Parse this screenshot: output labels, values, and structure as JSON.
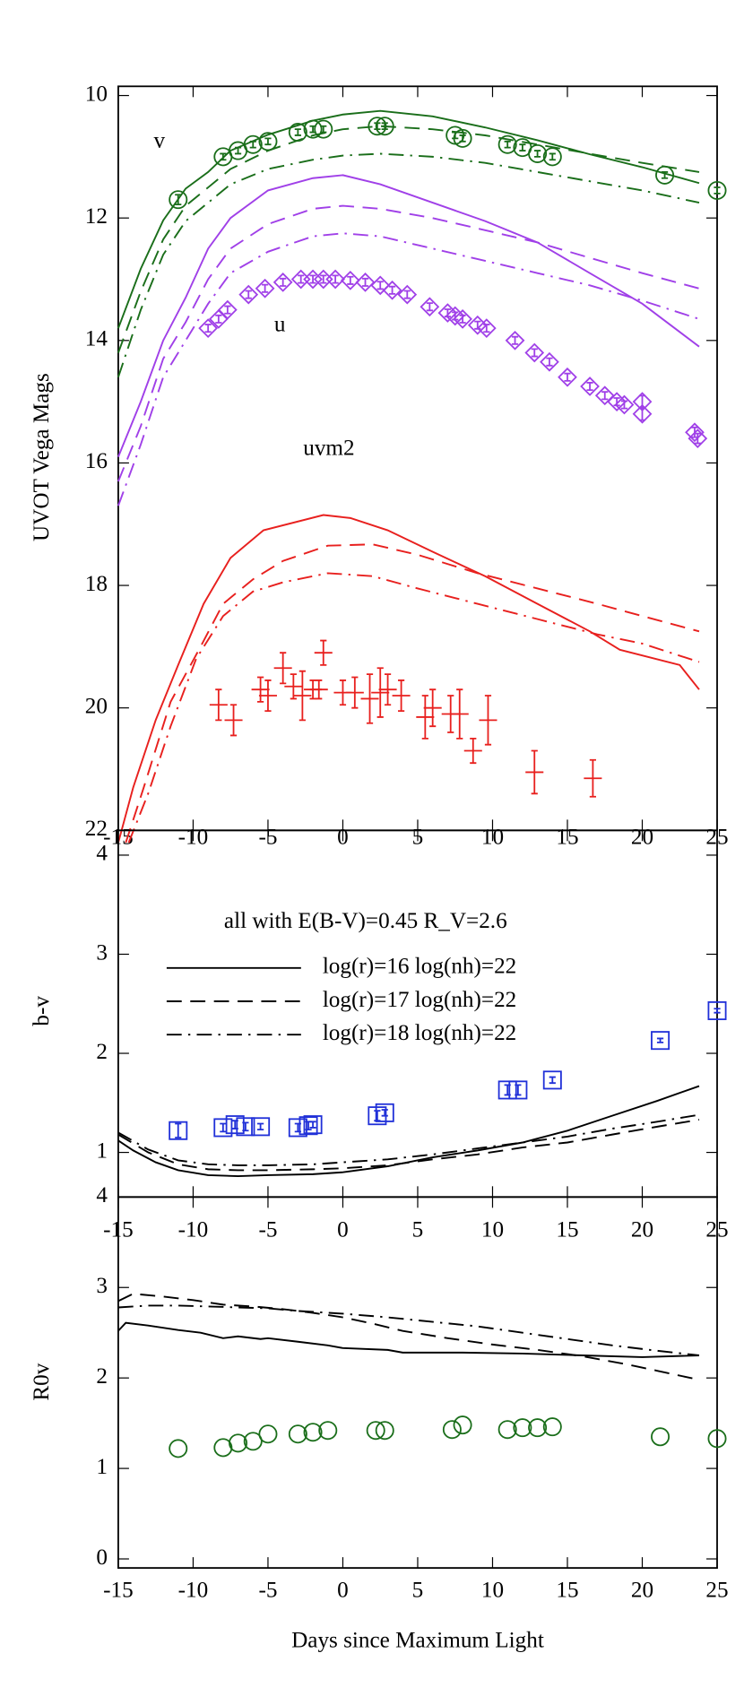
{
  "chart_data": [
    {
      "type": "line",
      "ylabel": "UVOT Vega Mags",
      "xlim": [
        -15,
        25
      ],
      "xticks": [
        -15,
        -10,
        -5,
        0,
        5,
        10,
        15,
        20,
        25
      ],
      "ylim": [
        9.85,
        22
      ],
      "y_inverted": true,
      "yticks": [
        10,
        12,
        14,
        16,
        18,
        20,
        22
      ],
      "annotations": [
        "v",
        "u",
        "uvm2"
      ],
      "series": [
        {
          "color": "#1a6e1a",
          "style": "solid",
          "x": [
            -15,
            -13.5,
            -12,
            -10.5,
            -9,
            -7.5,
            -5,
            -2,
            0,
            2.5,
            6,
            9.5,
            13,
            16.5,
            20,
            23.8
          ],
          "values": [
            13.8,
            12.83,
            12.04,
            11.52,
            11.25,
            10.9,
            10.64,
            10.41,
            10.31,
            10.25,
            10.34,
            10.52,
            10.73,
            10.96,
            11.17,
            11.43
          ]
        },
        {
          "color": "#1a6e1a",
          "style": "dashed",
          "x": [
            -15,
            -13.5,
            -12,
            -10.5,
            -9,
            -7.5,
            -5,
            -2,
            0,
            2.5,
            6,
            9.5,
            13,
            16.5,
            20,
            23.8
          ],
          "values": [
            14.2,
            13.2,
            12.35,
            11.8,
            11.5,
            11.2,
            10.9,
            10.65,
            10.55,
            10.5,
            10.55,
            10.65,
            10.8,
            10.95,
            11.1,
            11.25
          ]
        },
        {
          "color": "#1a6e1a",
          "style": "dashdot",
          "x": [
            -15,
            -13.5,
            -12,
            -10.5,
            -9,
            -7.5,
            -5,
            -2,
            0,
            2.5,
            6,
            9.5,
            13,
            16.5,
            20,
            23.8
          ],
          "values": [
            14.6,
            13.5,
            12.6,
            12.05,
            11.75,
            11.45,
            11.2,
            11.05,
            10.98,
            10.95,
            11.0,
            11.1,
            11.25,
            11.4,
            11.55,
            11.75
          ]
        },
        {
          "color": "#1a6e1a",
          "marker": "circle",
          "x": [
            -11,
            -8,
            -7,
            -6,
            -5,
            -3,
            -2,
            -1.3,
            2.3,
            2.8,
            7.5,
            8,
            11,
            12,
            13,
            14,
            21.5,
            25
          ],
          "values": [
            11.7,
            11.0,
            10.9,
            10.8,
            10.75,
            10.6,
            10.55,
            10.55,
            10.5,
            10.5,
            10.65,
            10.7,
            10.8,
            10.85,
            10.95,
            11.0,
            11.3,
            11.55
          ],
          "errors": [
            0.08,
            0.05,
            0.05,
            0.05,
            0.05,
            0.05,
            0.05,
            0.05,
            0.05,
            0.05,
            0.05,
            0.05,
            0.05,
            0.05,
            0.05,
            0.05,
            0.05,
            0.05
          ]
        },
        {
          "color": "#a040e8",
          "style": "solid",
          "x": [
            -15,
            -13.5,
            -12,
            -10.5,
            -9,
            -7.5,
            -5,
            -2,
            0,
            2.5,
            6,
            9.5,
            13,
            16.5,
            20,
            23.8
          ],
          "values": [
            15.9,
            15.0,
            14.0,
            13.3,
            12.5,
            12.0,
            11.55,
            11.35,
            11.3,
            11.45,
            11.75,
            12.05,
            12.4,
            12.9,
            13.4,
            14.1
          ]
        },
        {
          "color": "#a040e8",
          "style": "dashed",
          "x": [
            -15,
            -13.5,
            -12,
            -10.5,
            -9,
            -7.5,
            -5,
            -2,
            0,
            2.5,
            6,
            9.5,
            13,
            16.5,
            20,
            23.8
          ],
          "values": [
            16.3,
            15.4,
            14.3,
            13.7,
            13.0,
            12.5,
            12.1,
            11.85,
            11.8,
            11.85,
            12.0,
            12.2,
            12.4,
            12.65,
            12.9,
            13.15
          ]
        },
        {
          "color": "#a040e8",
          "style": "dashdot",
          "x": [
            -15,
            -13.5,
            -12,
            -10.5,
            -9,
            -7.5,
            -5,
            -2,
            0,
            2.5,
            6,
            9.5,
            13,
            16.5,
            20,
            23.8
          ],
          "values": [
            16.7,
            15.7,
            14.6,
            14.0,
            13.4,
            12.9,
            12.55,
            12.3,
            12.25,
            12.3,
            12.5,
            12.7,
            12.9,
            13.1,
            13.35,
            13.65
          ]
        },
        {
          "color": "#a040e8",
          "marker": "diamond",
          "x": [
            -9,
            -8.3,
            -7.7,
            -6.3,
            -5.2,
            -4,
            -2.8,
            -2,
            -1.3,
            -0.5,
            0.5,
            1.5,
            2.5,
            3.3,
            4.3,
            5.8,
            7,
            7.5,
            8,
            9,
            9.6,
            11.5,
            12.8,
            13.8,
            15,
            16.5,
            17.5,
            18.3,
            18.8,
            20,
            20,
            23.5,
            23.7
          ],
          "values": [
            13.8,
            13.65,
            13.5,
            13.25,
            13.15,
            13.05,
            13.0,
            13.0,
            13.0,
            13.0,
            13.02,
            13.05,
            13.1,
            13.18,
            13.25,
            13.45,
            13.55,
            13.6,
            13.65,
            13.75,
            13.8,
            14.0,
            14.2,
            14.35,
            14.6,
            14.75,
            14.9,
            15.0,
            15.05,
            15.0,
            15.2,
            15.5,
            15.6
          ],
          "errors": [
            0.06,
            0.06,
            0.06,
            0.06,
            0.06,
            0.06,
            0.06,
            0.06,
            0.06,
            0.06,
            0.06,
            0.06,
            0.06,
            0.06,
            0.06,
            0.06,
            0.06,
            0.06,
            0.06,
            0.06,
            0.06,
            0.06,
            0.06,
            0.06,
            0.06,
            0.06,
            0.06,
            0.06,
            0.06,
            0.1,
            0.1,
            0.08,
            0.08
          ]
        },
        {
          "color": "#e8201e",
          "style": "solid",
          "x": [
            -15,
            -14,
            -12.5,
            -11,
            -9.3,
            -7.5,
            -5.3,
            -1.3,
            0.5,
            3,
            6,
            9.5,
            13,
            16.5,
            18.5,
            22.5,
            23.8
          ],
          "values": [
            22.2,
            21.3,
            20.2,
            19.3,
            18.3,
            17.55,
            17.1,
            16.85,
            16.9,
            17.1,
            17.45,
            17.85,
            18.3,
            18.75,
            19.05,
            19.3,
            19.7
          ]
        },
        {
          "color": "#e8201e",
          "style": "dashed",
          "x": [
            -14.5,
            -13.3,
            -11.5,
            -9.5,
            -8,
            -6,
            -4,
            -1,
            2,
            5,
            9,
            13,
            17,
            20,
            23.8
          ],
          "values": [
            22.2,
            21.3,
            19.9,
            19.0,
            18.3,
            17.9,
            17.6,
            17.35,
            17.33,
            17.5,
            17.8,
            18.05,
            18.3,
            18.5,
            18.75
          ]
        },
        {
          "color": "#e8201e",
          "style": "dashdot",
          "x": [
            -14.3,
            -13,
            -11.5,
            -9.8,
            -8,
            -6,
            -4,
            -1,
            2,
            5,
            9,
            13,
            17,
            20,
            23.8
          ],
          "values": [
            22.2,
            21.4,
            20.3,
            19.2,
            18.5,
            18.1,
            17.95,
            17.8,
            17.85,
            18.05,
            18.3,
            18.55,
            18.8,
            18.95,
            19.25
          ]
        },
        {
          "color": "#e8201e",
          "marker": "cross",
          "xerror": 0.6,
          "x": [
            -8.3,
            -7.3,
            -5.5,
            -5,
            -4,
            -3.3,
            -2.7,
            -2,
            -1.6,
            -1.3,
            0,
            0.8,
            1.8,
            2.5,
            3,
            3.9,
            5.5,
            6,
            7.2,
            7.8,
            8.7,
            9.7,
            12.8,
            16.7
          ],
          "values": [
            19.95,
            20.2,
            19.7,
            19.8,
            19.35,
            19.65,
            19.8,
            19.7,
            19.7,
            19.1,
            19.75,
            19.75,
            19.85,
            19.75,
            19.7,
            19.8,
            20.15,
            20.0,
            20.1,
            20.1,
            20.7,
            20.2,
            21.05,
            21.15
          ],
          "errors": [
            0.25,
            0.25,
            0.2,
            0.25,
            0.25,
            0.2,
            0.4,
            0.15,
            0.15,
            0.2,
            0.2,
            0.25,
            0.4,
            0.4,
            0.25,
            0.25,
            0.35,
            0.3,
            0.3,
            0.4,
            0.2,
            0.4,
            0.35,
            0.3
          ]
        }
      ]
    },
    {
      "type": "line",
      "ylabel": "b-v",
      "xlim": [
        -15,
        25
      ],
      "xticks": [
        -15,
        -10,
        -5,
        0,
        5,
        10,
        15,
        20,
        25
      ],
      "ylim": [
        0.55,
        4.25
      ],
      "yticks": [
        1,
        2,
        3,
        4
      ],
      "annotations": [
        "all with E(B-V)=0.45 R_V=2.6"
      ],
      "series": [
        {
          "name": "log(r)=16 log(nh)=22",
          "color": "#000000",
          "style": "solid",
          "x": [
            -15,
            -14,
            -12.5,
            -11,
            -9,
            -7,
            -5,
            -2,
            0,
            3,
            6,
            9,
            12,
            15,
            18,
            21,
            23.8
          ],
          "values": [
            1.12,
            1.02,
            0.9,
            0.82,
            0.77,
            0.76,
            0.77,
            0.78,
            0.8,
            0.86,
            0.95,
            1.02,
            1.1,
            1.22,
            1.37,
            1.52,
            1.67
          ]
        },
        {
          "name": "log(r)=17 log(nh)=22",
          "color": "#000000",
          "style": "dashed",
          "x": [
            -15,
            -13,
            -11,
            -9,
            -7,
            -5,
            -2,
            0,
            3,
            6,
            9,
            12,
            15,
            18,
            21,
            23.8
          ],
          "values": [
            1.18,
            1.0,
            0.88,
            0.83,
            0.82,
            0.82,
            0.83,
            0.84,
            0.87,
            0.93,
            0.98,
            1.05,
            1.1,
            1.18,
            1.26,
            1.33
          ]
        },
        {
          "name": "log(r)=18 log(nh)=22",
          "color": "#000000",
          "style": "dashdot",
          "x": [
            -15,
            -13,
            -11,
            -9,
            -7,
            -5,
            -2,
            0,
            3,
            6,
            9,
            12,
            15,
            18,
            21,
            23.8
          ],
          "values": [
            1.2,
            1.03,
            0.92,
            0.88,
            0.87,
            0.87,
            0.88,
            0.9,
            0.93,
            0.98,
            1.04,
            1.1,
            1.16,
            1.24,
            1.31,
            1.38
          ]
        },
        {
          "color": "#2030d8",
          "marker": "square",
          "x": [
            -11,
            -8,
            -7.2,
            -6.5,
            -5.5,
            -3,
            -2.3,
            -2,
            2.3,
            2.8,
            11,
            11.7,
            14,
            21.2,
            25
          ],
          "values": [
            1.22,
            1.25,
            1.28,
            1.26,
            1.26,
            1.25,
            1.27,
            1.28,
            1.37,
            1.4,
            1.63,
            1.63,
            1.73,
            2.13,
            2.43
          ],
          "errors": [
            0.07,
            0.04,
            0.04,
            0.04,
            0.03,
            0.04,
            0.04,
            0.03,
            0.05,
            0.03,
            0.05,
            0.05,
            0.03,
            0.02,
            0.02
          ]
        }
      ]
    },
    {
      "type": "line",
      "ylabel": "R0v",
      "xlabel": "Days since Maximum Light",
      "xlim": [
        -15,
        25
      ],
      "xticks": [
        -15,
        -10,
        -5,
        0,
        5,
        10,
        15,
        20,
        25
      ],
      "ylim": [
        -0.1,
        4.0
      ],
      "yticks": [
        0,
        1,
        2,
        3,
        4
      ],
      "series": [
        {
          "color": "#000000",
          "style": "solid",
          "x": [
            -15,
            -14.5,
            -13,
            -11,
            -9.5,
            -8,
            -7,
            -5.5,
            -5,
            -3,
            -1,
            0,
            3,
            4,
            8,
            12,
            16,
            20,
            23.8
          ],
          "values": [
            2.52,
            2.61,
            2.58,
            2.53,
            2.5,
            2.44,
            2.46,
            2.43,
            2.44,
            2.4,
            2.36,
            2.33,
            2.31,
            2.28,
            2.28,
            2.27,
            2.25,
            2.23,
            2.25
          ]
        },
        {
          "color": "#000000",
          "style": "dashed",
          "x": [
            -15,
            -14,
            -12,
            -10,
            -8,
            -6,
            -4,
            -2,
            0,
            2,
            4,
            7,
            10,
            13,
            16,
            19,
            21,
            23.8
          ],
          "values": [
            2.85,
            2.93,
            2.9,
            2.86,
            2.81,
            2.79,
            2.76,
            2.72,
            2.67,
            2.6,
            2.52,
            2.44,
            2.37,
            2.31,
            2.24,
            2.15,
            2.08,
            1.98
          ]
        },
        {
          "color": "#000000",
          "style": "dashdot",
          "x": [
            -15,
            -13,
            -11,
            -9,
            -7,
            -5,
            -3,
            0,
            3,
            6,
            9,
            12,
            15,
            18,
            21,
            23.8
          ],
          "values": [
            2.78,
            2.8,
            2.8,
            2.79,
            2.78,
            2.77,
            2.74,
            2.71,
            2.67,
            2.62,
            2.57,
            2.5,
            2.43,
            2.36,
            2.3,
            2.25
          ]
        },
        {
          "color": "#1a6e1a",
          "marker": "circle",
          "x": [
            -11,
            -8,
            -7,
            -6,
            -5,
            -3,
            -2,
            -1,
            2.2,
            2.8,
            7.3,
            8,
            11,
            12,
            13,
            14,
            21.2,
            25
          ],
          "values": [
            1.22,
            1.23,
            1.28,
            1.3,
            1.38,
            1.38,
            1.4,
            1.42,
            1.42,
            1.42,
            1.43,
            1.48,
            1.43,
            1.45,
            1.45,
            1.46,
            1.35,
            1.33
          ]
        }
      ]
    }
  ]
}
